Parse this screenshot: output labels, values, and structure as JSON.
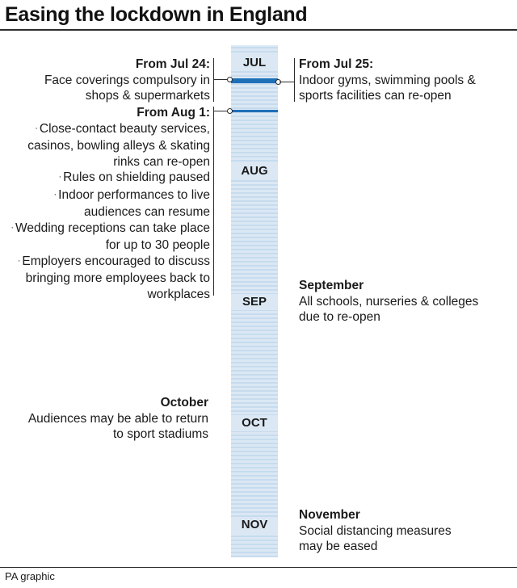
{
  "title": "Easing the lockdown in England",
  "months": [
    "JUL",
    "AUG",
    "SEP",
    "OCT",
    "NOV"
  ],
  "events": {
    "jul24": {
      "heading": "From Jul 24:",
      "lines": [
        "Face coverings compulsory in",
        "shops & supermarkets"
      ]
    },
    "jul25": {
      "heading": "From Jul 25:",
      "lines": [
        "Indoor gyms, swimming pools &",
        "sports facilities can re-open"
      ]
    },
    "aug1": {
      "heading": "From Aug 1:",
      "bullets": [
        "Close-contact beauty services, casinos, bowling alleys & skating rinks can re-open",
        "Rules on shielding paused",
        "Indoor performances to live audiences can resume",
        "Wedding receptions can take place for up to 30 people",
        "Employers encouraged to discuss bringing more employees back to workplaces"
      ]
    },
    "september": {
      "heading": "September",
      "lines": [
        "All schools, nurseries & colleges",
        "due to re-open"
      ]
    },
    "october": {
      "heading": "October",
      "lines": [
        "Audiences may be able to return",
        "to sport stadiums"
      ]
    },
    "november": {
      "heading": "November",
      "lines": [
        "Social distancing measures",
        "may be eased"
      ]
    }
  },
  "credit": "PA graphic"
}
